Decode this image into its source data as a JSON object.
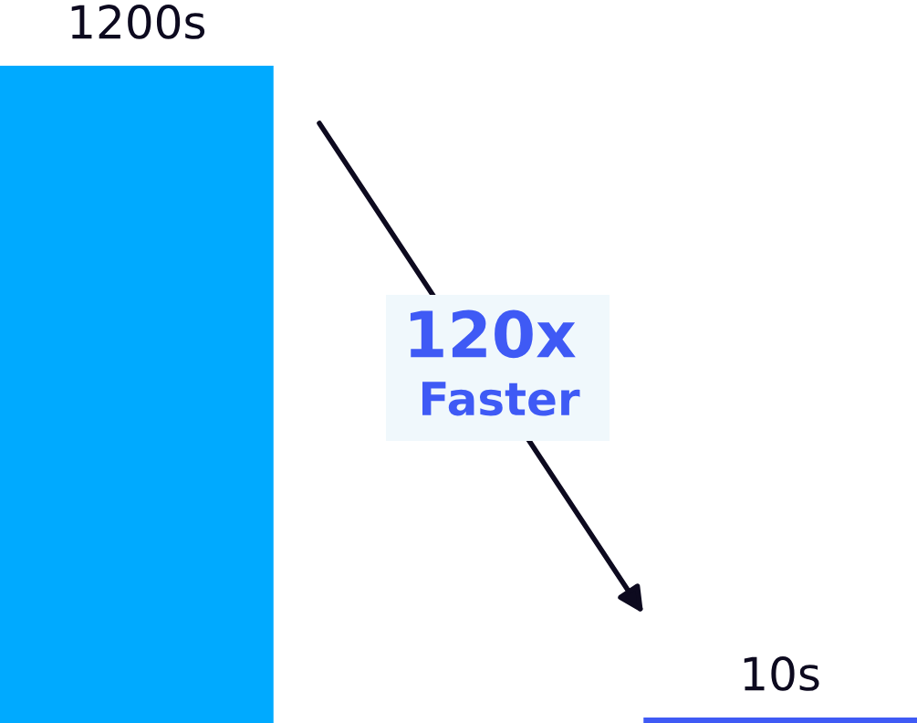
{
  "chart_data": {
    "type": "bar",
    "categories": [
      null,
      null
    ],
    "values": [
      1200,
      10
    ],
    "colors": [
      "#00aaff",
      "#3f5af5"
    ],
    "value_labels": [
      "1200s",
      "10s"
    ],
    "annotations": [
      "120x",
      "Faster"
    ]
  }
}
